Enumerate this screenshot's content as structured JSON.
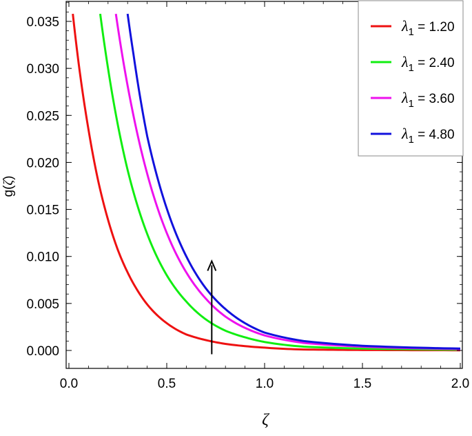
{
  "chart_data": {
    "type": "line",
    "xlabel": "ζ",
    "ylabel": "g(ζ)",
    "ylabel_parts": [
      "g(",
      "ζ",
      ")"
    ],
    "xlim": [
      0,
      2.0
    ],
    "ylim": [
      -0.0015,
      0.0375
    ],
    "x_ticks": [
      0.0,
      0.5,
      1.0,
      1.5,
      2.0
    ],
    "x_tick_labels": [
      "0.0",
      "0.5",
      "1.0",
      "1.5",
      "2.0"
    ],
    "y_ticks": [
      0.0,
      0.005,
      0.01,
      0.015,
      0.02,
      0.025,
      0.03,
      0.035
    ],
    "y_tick_labels": [
      "0.000",
      "0.005",
      "0.010",
      "0.015",
      "0.020",
      "0.025",
      "0.030",
      "0.035"
    ],
    "grid": false,
    "legend_position": "top-right",
    "series": [
      {
        "name": "λ1 = 1.20",
        "color": "#ee1111",
        "x": [
          0.02,
          0.05,
          0.1,
          0.15,
          0.2,
          0.25,
          0.3,
          0.35,
          0.4,
          0.5,
          0.6,
          0.7,
          0.8,
          1.0,
          1.2,
          1.5,
          2.0
        ],
        "y": [
          0.0358,
          0.0305,
          0.0235,
          0.018,
          0.0139,
          0.0107,
          0.0083,
          0.0064,
          0.0049,
          0.0029,
          0.0017,
          0.0011,
          0.0007,
          0.0003,
          0.0001,
          5e-05,
          2e-05
        ]
      },
      {
        "name": "λ1 = 2.40",
        "color": "#11ee11",
        "x": [
          0.16,
          0.2,
          0.25,
          0.3,
          0.4,
          0.5,
          0.6,
          0.7,
          0.8,
          0.9,
          1.0,
          1.2,
          1.5,
          2.0
        ],
        "y": [
          0.0358,
          0.03,
          0.024,
          0.0192,
          0.0124,
          0.008,
          0.0052,
          0.0033,
          0.0021,
          0.0014,
          0.0009,
          0.0004,
          0.0002,
          8e-05
        ]
      },
      {
        "name": "λ1 = 3.60",
        "color": "#ee11ee",
        "x": [
          0.24,
          0.28,
          0.32,
          0.4,
          0.5,
          0.6,
          0.7,
          0.8,
          0.9,
          1.0,
          1.2,
          1.5,
          2.0
        ],
        "y": [
          0.0358,
          0.0305,
          0.026,
          0.0188,
          0.0125,
          0.0083,
          0.0055,
          0.0036,
          0.0024,
          0.0016,
          0.0008,
          0.0004,
          0.00015
        ]
      },
      {
        "name": "λ1 = 4.80",
        "color": "#1111dd",
        "x": [
          0.3,
          0.33,
          0.37,
          0.4,
          0.5,
          0.6,
          0.7,
          0.8,
          0.9,
          1.0,
          1.2,
          1.5,
          2.0
        ],
        "y": [
          0.0358,
          0.0315,
          0.0262,
          0.0228,
          0.0151,
          0.01,
          0.0066,
          0.0044,
          0.0029,
          0.0019,
          0.001,
          0.0005,
          0.0002
        ]
      }
    ],
    "legend_entries": [
      {
        "symbol": "λ",
        "sub": "1",
        "value": " = 1.20",
        "color": "#ee1111"
      },
      {
        "symbol": "λ",
        "sub": "1",
        "value": " = 2.40",
        "color": "#11ee11"
      },
      {
        "symbol": "λ",
        "sub": "1",
        "value": " = 3.60",
        "color": "#ee11ee"
      },
      {
        "symbol": "λ",
        "sub": "1",
        "value": " = 4.80",
        "color": "#1111dd"
      }
    ],
    "annotation_arrow": {
      "x": 0.73,
      "y_from": -0.0004,
      "y_to": 0.0095,
      "color": "#000000"
    }
  }
}
